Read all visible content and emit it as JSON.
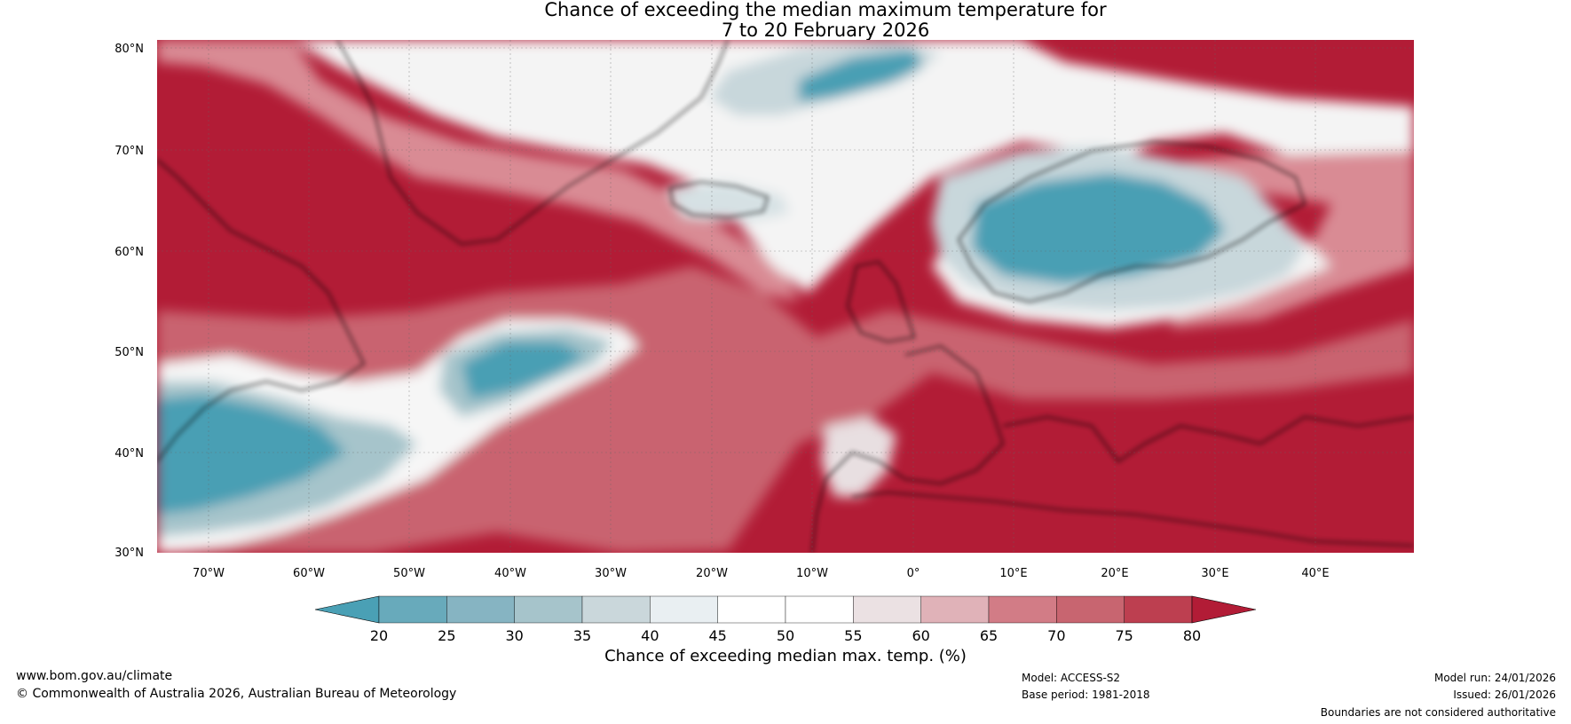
{
  "title": {
    "line1": "Chance of exceeding the median maximum temperature for",
    "line2": "7 to 20 February 2026"
  },
  "map": {
    "lat_labels": [
      "80°N",
      "70°N",
      "60°N",
      "50°N",
      "40°N",
      "30°N"
    ],
    "lon_labels": [
      "70°W",
      "60°W",
      "50°W",
      "40°W",
      "30°W",
      "20°W",
      "10°W",
      "0°",
      "10°E",
      "20°E",
      "30°E",
      "40°E"
    ],
    "colors": {
      "warm": "#b21c36",
      "warm_mid": "#c96470",
      "neutral": "#ffffff",
      "cool_light": "#c8d7db",
      "cool": "#4a9fb4",
      "coast": "#000000",
      "border": "#888888"
    }
  },
  "colorbar": {
    "ticks": [
      "20",
      "25",
      "30",
      "35",
      "40",
      "45",
      "50",
      "55",
      "60",
      "65",
      "70",
      "75",
      "80"
    ],
    "colors": [
      "#4aa0b5",
      "#68aabb",
      "#86b4c2",
      "#a6c4cb",
      "#cad7db",
      "#e9eff2",
      "#ffffff",
      "#ffffff",
      "#ebe1e3",
      "#e0b2b8",
      "#d27c86",
      "#c86570",
      "#bd3f50",
      "#b21c36"
    ],
    "label": "Chance of exceeding median max. temp. (%)"
  },
  "footer": {
    "website": "www.bom.gov.au/climate",
    "copyright": "© Commonwealth of Australia 2026, Australian Bureau of Meteorology",
    "model": "Model: ACCESS-S2",
    "base_period": "Base period: 1981-2018",
    "model_run": "Model run: 24/01/2026",
    "issued": "Issued: 26/01/2026",
    "disclaimer": "Boundaries are not considered authoritative"
  }
}
